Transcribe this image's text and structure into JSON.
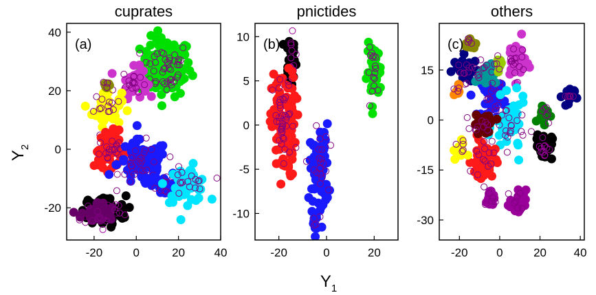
{
  "figure": {
    "ylabel": "Y",
    "ylabel_sub": "2",
    "xlabel": "Y",
    "xlabel_sub": "1"
  },
  "chart_data": [
    {
      "type": "scatter",
      "title": "cuprates",
      "panel_label": "(a)",
      "xlim": [
        -33,
        40
      ],
      "ylim": [
        -31,
        43
      ],
      "xticks": [
        -20,
        0,
        20,
        40
      ],
      "yticks": [
        -20,
        0,
        20,
        40
      ],
      "clusters": [
        {
          "color": "#00e000",
          "cx": 14,
          "cy": 28,
          "sx": 6,
          "sy": 5,
          "n": 120
        },
        {
          "color": "#cc33cc",
          "cx": -1,
          "cy": 23,
          "sx": 3,
          "sy": 2.5,
          "n": 40
        },
        {
          "color": "#ffff00",
          "cx": -14,
          "cy": 14,
          "sx": 3.5,
          "sy": 3,
          "n": 40
        },
        {
          "color": "#888800",
          "cx": -14,
          "cy": 22,
          "sx": 1,
          "sy": 0.8,
          "n": 8
        },
        {
          "color": "#ff1a1a",
          "cx": -12,
          "cy": 0,
          "sx": 4,
          "sy": 3,
          "n": 55
        },
        {
          "color": "#1a1aff",
          "cx": 3,
          "cy": -5,
          "sx": 6,
          "sy": 4,
          "n": 80
        },
        {
          "color": "#1a1aff",
          "cx": 14,
          "cy": -12,
          "sx": 3,
          "sy": 2,
          "n": 20
        },
        {
          "color": "#00e5ff",
          "cx": 24,
          "cy": -12,
          "sx": 5,
          "sy": 3,
          "n": 45
        },
        {
          "color": "#000000",
          "cx": -15,
          "cy": -21,
          "sx": 5,
          "sy": 2.5,
          "n": 90
        },
        {
          "color": "#660066",
          "cx": -18,
          "cy": -22,
          "sx": 4,
          "sy": 2,
          "n": 30
        }
      ]
    },
    {
      "type": "scatter",
      "title": "pnictides",
      "panel_label": "(b)",
      "xlim": [
        -30,
        30
      ],
      "ylim": [
        -13,
        11.5
      ],
      "xticks": [
        -20,
        0,
        20
      ],
      "yticks": [
        -10,
        -5,
        0,
        5,
        10
      ],
      "clusters": [
        {
          "color": "#000000",
          "cx": -15,
          "cy": 7.5,
          "sx": 1.2,
          "sy": 1.5,
          "n": 35
        },
        {
          "color": "#ff1a1a",
          "cx": -18,
          "cy": 0,
          "sx": 2.5,
          "sy": 3,
          "n": 110
        },
        {
          "color": "#1a1aff",
          "cx": -3,
          "cy": -5,
          "sx": 2,
          "sy": 2.5,
          "n": 60
        },
        {
          "color": "#1a1aff",
          "cx": -5,
          "cy": -11,
          "sx": 0.8,
          "sy": 0.8,
          "n": 8
        },
        {
          "color": "#00e000",
          "cx": 20,
          "cy": 6,
          "sx": 1.5,
          "sy": 1.5,
          "n": 45
        }
      ]
    },
    {
      "type": "scatter",
      "title": "others",
      "panel_label": "(c)",
      "xlim": [
        -30,
        42
      ],
      "ylim": [
        -36,
        29
      ],
      "xticks": [
        -20,
        0,
        20,
        40
      ],
      "yticks": [
        -30,
        -15,
        0,
        15
      ],
      "clusters": [
        {
          "color": "#1a1aff",
          "cx": -3,
          "cy": 7,
          "sx": 3,
          "sy": 3,
          "n": 45
        },
        {
          "color": "#000080",
          "cx": -17,
          "cy": 15,
          "sx": 3,
          "sy": 2,
          "n": 35
        },
        {
          "color": "#009999",
          "cx": -7,
          "cy": 14,
          "sx": 2.5,
          "sy": 2,
          "n": 25
        },
        {
          "color": "#cc33cc",
          "cx": 8,
          "cy": 18,
          "sx": 2.5,
          "sy": 3,
          "n": 40
        },
        {
          "color": "#00e5ff",
          "cx": 5,
          "cy": -2,
          "sx": 4,
          "sy": 4,
          "n": 50
        },
        {
          "color": "#ff1a1a",
          "cx": -8,
          "cy": -12,
          "sx": 3,
          "sy": 4,
          "n": 45
        },
        {
          "color": "#660000",
          "cx": -8,
          "cy": -1,
          "sx": 3,
          "sy": 1.5,
          "n": 25
        },
        {
          "color": "#000000",
          "cx": 22,
          "cy": -8,
          "sx": 2,
          "sy": 2,
          "n": 30
        },
        {
          "color": "#008000",
          "cx": 22,
          "cy": 2,
          "sx": 1.5,
          "sy": 1.5,
          "n": 18
        },
        {
          "color": "#000080",
          "cx": 34,
          "cy": 7,
          "sx": 1.5,
          "sy": 1.5,
          "n": 18
        },
        {
          "color": "#ffff00",
          "cx": -20,
          "cy": -9,
          "sx": 1.5,
          "sy": 1.5,
          "n": 15
        },
        {
          "color": "#990099",
          "cx": -5,
          "cy": -24,
          "sx": 1.2,
          "sy": 1.5,
          "n": 15
        },
        {
          "color": "#990099",
          "cx": 9,
          "cy": -25,
          "sx": 2,
          "sy": 2,
          "n": 20
        },
        {
          "color": "#888800",
          "cx": -15,
          "cy": 23,
          "sx": 1.5,
          "sy": 1,
          "n": 12
        },
        {
          "color": "#ff8800",
          "cx": -21,
          "cy": 9,
          "sx": 1,
          "sy": 1,
          "n": 8
        },
        {
          "color": "#99cc00",
          "cx": 0,
          "cy": 17,
          "sx": 1.2,
          "sy": 1.2,
          "n": 10
        }
      ]
    }
  ]
}
